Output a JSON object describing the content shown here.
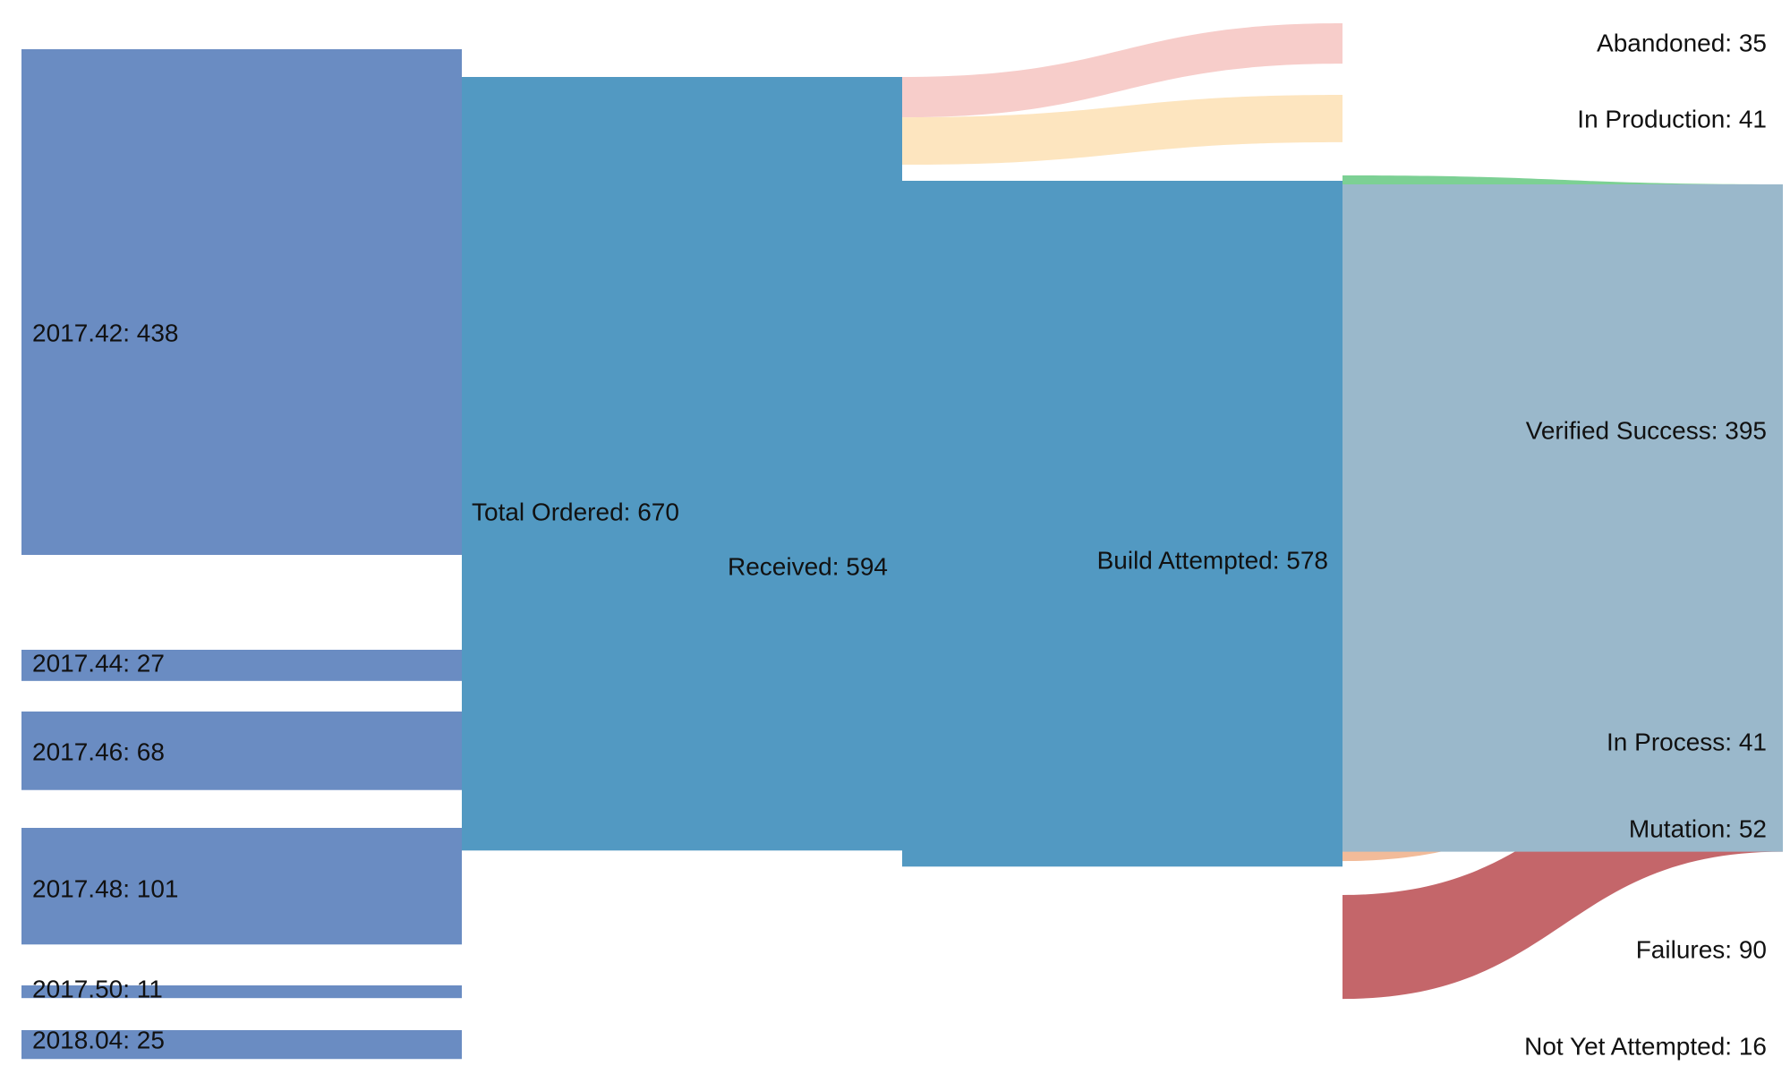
{
  "chart_data": {
    "type": "sankey",
    "title": "",
    "colors": {
      "week": "#6a8cc2",
      "total": "#5299c2",
      "received": "#5299c2",
      "build": "#9ab8cb",
      "abandoned": "#f7cdca",
      "in_production": "#fde5bf",
      "verified": "#7cd094",
      "in_process": "#f5e6a3",
      "mutation": "#f2bb99",
      "failures": "#c4666a",
      "not_yet": "#f2e3e5"
    },
    "nodes": [
      {
        "id": "w42",
        "label": "2017.42: 438",
        "column": 0,
        "value": 438,
        "color": "week"
      },
      {
        "id": "w44",
        "label": "2017.44: 27",
        "column": 0,
        "value": 27,
        "color": "week"
      },
      {
        "id": "w46",
        "label": "2017.46: 68",
        "column": 0,
        "value": 68,
        "color": "week"
      },
      {
        "id": "w48",
        "label": "2017.48: 101",
        "column": 0,
        "value": 101,
        "color": "week"
      },
      {
        "id": "w50",
        "label": "2017.50: 11",
        "column": 0,
        "value": 11,
        "color": "week"
      },
      {
        "id": "w04",
        "label": "2018.04: 25",
        "column": 0,
        "value": 25,
        "color": "week"
      },
      {
        "id": "total",
        "label": "Total Ordered: 670",
        "column": 1,
        "value": 670,
        "color": "total"
      },
      {
        "id": "received",
        "label": "Received: 594",
        "column": 2,
        "value": 594,
        "color": "received"
      },
      {
        "id": "build",
        "label": "Build Attempted: 578",
        "column": 3,
        "value": 578,
        "color": "build"
      },
      {
        "id": "abandoned",
        "label": "Abandoned: 35",
        "column": 4,
        "value": 35,
        "color": "abandoned"
      },
      {
        "id": "inprod",
        "label": "In Production: 41",
        "column": 4,
        "value": 41,
        "color": "in_production"
      },
      {
        "id": "verified",
        "label": "Verified Success: 395",
        "column": 4,
        "value": 395,
        "color": "verified"
      },
      {
        "id": "inprocess",
        "label": "In Process: 41",
        "column": 4,
        "value": 41,
        "color": "in_process"
      },
      {
        "id": "mutation",
        "label": "Mutation: 52",
        "column": 4,
        "value": 52,
        "color": "mutation"
      },
      {
        "id": "failures",
        "label": "Failures: 90",
        "column": 4,
        "value": 90,
        "color": "failures"
      },
      {
        "id": "notyet",
        "label": "Not Yet Attempted: 16",
        "column": 4,
        "value": 16,
        "color": "not_yet"
      }
    ],
    "links": [
      {
        "source": "w42",
        "target": "total",
        "value": 438
      },
      {
        "source": "w44",
        "target": "total",
        "value": 27
      },
      {
        "source": "w46",
        "target": "total",
        "value": 68
      },
      {
        "source": "w48",
        "target": "total",
        "value": 101
      },
      {
        "source": "w50",
        "target": "total",
        "value": 11
      },
      {
        "source": "w04",
        "target": "total",
        "value": 25
      },
      {
        "source": "total",
        "target": "abandoned",
        "value": 35
      },
      {
        "source": "total",
        "target": "inprod",
        "value": 41
      },
      {
        "source": "total",
        "target": "received",
        "value": 594
      },
      {
        "source": "received",
        "target": "build",
        "value": 578
      },
      {
        "source": "received",
        "target": "notyet",
        "value": 16
      },
      {
        "source": "build",
        "target": "verified",
        "value": 395
      },
      {
        "source": "build",
        "target": "inprocess",
        "value": 41
      },
      {
        "source": "build",
        "target": "mutation",
        "value": 52
      },
      {
        "source": "build",
        "target": "failures",
        "value": 90
      }
    ]
  }
}
